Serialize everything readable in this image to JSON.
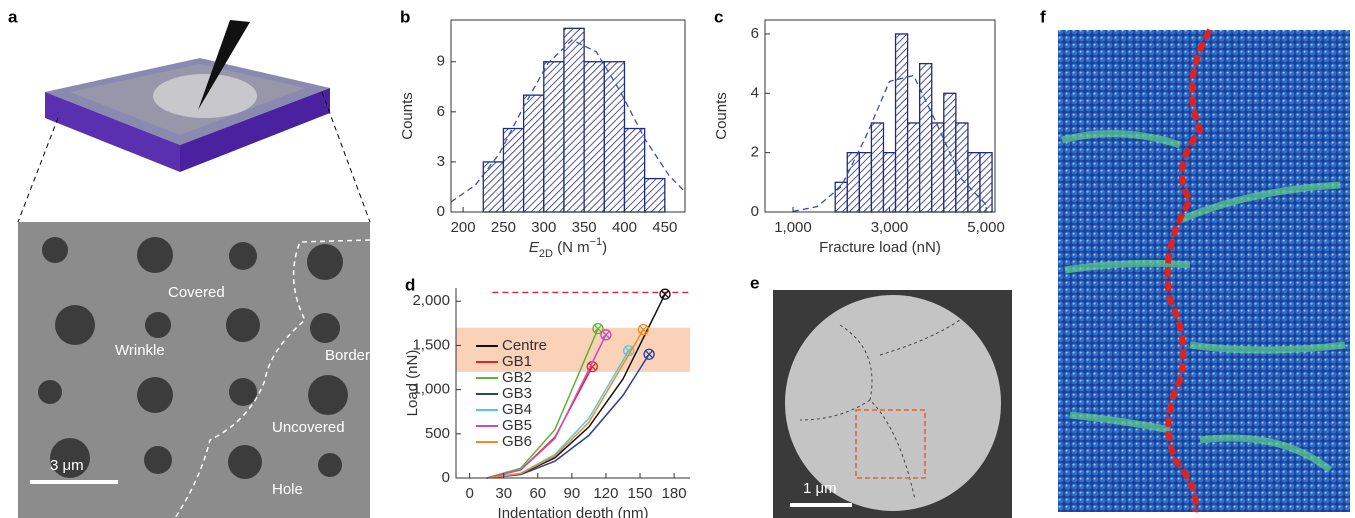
{
  "panels": {
    "a": {
      "label": "a",
      "texts": [
        "Covered",
        "Wrinkle",
        "Border",
        "Uncovered",
        "Hole"
      ],
      "scale_bar": "3 μm"
    },
    "e": {
      "label": "e",
      "scale_bar": "1 μm"
    },
    "f": {
      "label": "f"
    }
  },
  "chart_data": [
    {
      "type": "histogram",
      "panel": "b",
      "color": "#1f2a80",
      "fit_color": "#3a4fb0",
      "bins": [
        225,
        250,
        275,
        300,
        325,
        350,
        375,
        400,
        425,
        450
      ],
      "counts": [
        3,
        5,
        7,
        9,
        11,
        9,
        9,
        5,
        2
      ],
      "fit": {
        "x": [
          185,
          215,
          245,
          275,
          305,
          335,
          365,
          395,
          425,
          455,
          475
        ],
        "y": [
          0.6,
          1.6,
          3.5,
          6.3,
          8.9,
          10.3,
          9.6,
          7.2,
          4.4,
          2.2,
          1.2
        ]
      },
      "xlim": [
        185,
        475
      ],
      "xticks": [
        200,
        250,
        300,
        350,
        400,
        450
      ],
      "ylim": [
        0,
        11.5
      ],
      "yticks": [
        0,
        3,
        6,
        9
      ],
      "xlabel": [
        "E",
        "2D",
        " (N m",
        "−1",
        ")"
      ],
      "xlabel_styles": [
        "italic",
        "sub",
        "normal",
        "super",
        "normal"
      ],
      "ylabel": "Counts"
    },
    {
      "type": "histogram",
      "panel": "c",
      "color": "#1f2a80",
      "fit_color": "#3a4fb0",
      "bins": [
        1875,
        2125,
        2375,
        2625,
        2875,
        3125,
        3375,
        3625,
        3875,
        4125,
        4375,
        4625,
        4875,
        5125
      ],
      "counts": [
        1,
        2,
        2,
        3,
        2,
        6,
        3,
        5,
        3,
        4,
        3,
        2,
        2
      ],
      "fit": {
        "x": [
          1000,
          1500,
          2000,
          2500,
          3000,
          3500,
          4000,
          4500,
          5000
        ],
        "y": [
          0.02,
          0.18,
          0.86,
          2.5,
          4.4,
          4.6,
          2.9,
          1.1,
          0.25
        ]
      },
      "xlim": [
        420,
        5186
      ],
      "xticks": [
        {
          "value": 1000,
          "label": "1,000"
        },
        {
          "value": 3000,
          "label": "3,000"
        },
        {
          "value": 5000,
          "label": "5,000"
        }
      ],
      "ylim": [
        0,
        6.47
      ],
      "yticks": [
        0,
        2,
        4,
        6
      ],
      "xlabel": "Fracture load (nN)",
      "ylabel": "Counts"
    },
    {
      "type": "line",
      "panel": "d",
      "xlim": [
        -12,
        194
      ],
      "xticks": [
        0,
        30,
        60,
        90,
        120,
        150,
        180
      ],
      "ylim": [
        0,
        2150
      ],
      "yticks": [
        0,
        500,
        {
          "value": 1000,
          "label": "1,000"
        },
        {
          "value": 1500,
          "label": "1,500"
        },
        {
          "value": 2000,
          "label": "2,000"
        }
      ],
      "xlabel": "Indentation depth (nm)",
      "ylabel": "Load (nN)",
      "shaded_band": [
        1200,
        1700
      ],
      "band_color": "#f9d2b8",
      "reference_line": 2100,
      "reference_color": "#d9263a",
      "series": [
        {
          "name": "Centre",
          "color": "#111111",
          "x": [
            15,
            45,
            75,
            105,
            135,
            172
          ],
          "values": [
            0,
            46,
            228,
            578,
            1120,
            2080
          ]
        },
        {
          "name": "GB1",
          "color": "#e0262b",
          "x": [
            15,
            45,
            75,
            108
          ],
          "values": [
            0,
            93,
            460,
            1260
          ]
        },
        {
          "name": "GB2",
          "color": "#5cb531",
          "x": [
            15,
            45,
            75,
            113
          ],
          "values": [
            0,
            111,
            547,
            1690
          ]
        },
        {
          "name": "GB3",
          "color": "#2a3f9c",
          "x": [
            15,
            45,
            75,
            105,
            135,
            158
          ],
          "values": [
            0,
            39,
            190,
            482,
            935,
            1400
          ]
        },
        {
          "name": "GB4",
          "color": "#5ac6d8",
          "x": [
            15,
            45,
            75,
            105,
            140
          ],
          "values": [
            0,
            54,
            266,
            676,
            1440
          ]
        },
        {
          "name": "GB5",
          "color": "#c84bc0",
          "x": [
            15,
            45,
            75,
            120
          ],
          "values": [
            0,
            91,
            447,
            1620
          ]
        },
        {
          "name": "GB6",
          "color": "#f08c28",
          "x": [
            15,
            45,
            75,
            105,
            153
          ],
          "values": [
            0,
            50,
            248,
            629,
            1680
          ]
        }
      ]
    }
  ]
}
